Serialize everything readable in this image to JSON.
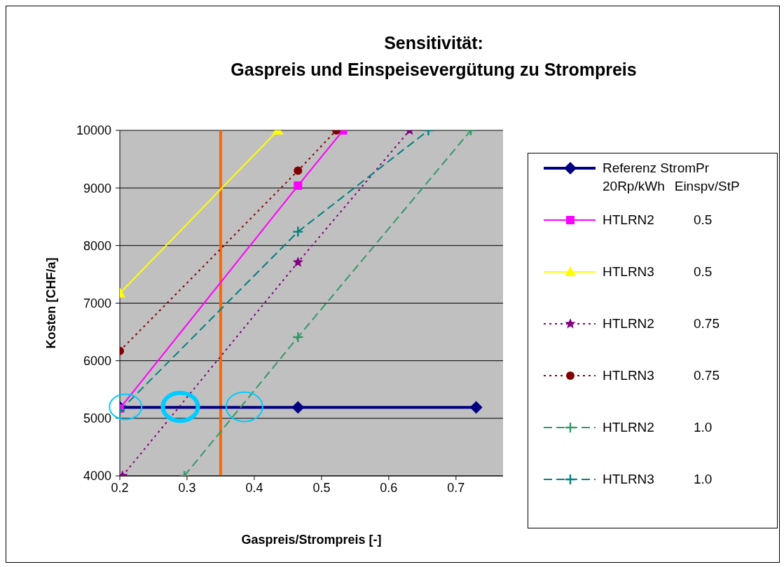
{
  "chart_data": {
    "type": "line",
    "title": "Sensitivität:\nGaspreis und Einspeisevergütung zu Strompreis",
    "xlabel": "Gaspreis/Strompreis [-]",
    "ylabel": "Kosten [CHF/a]",
    "legend_title": "Einspv/StP",
    "xlim": [
      0.2,
      0.77
    ],
    "xticks": [
      0.2,
      0.3,
      0.4,
      0.5,
      0.6,
      0.7
    ],
    "ylim": [
      4000,
      10000
    ],
    "yticks": [
      4000,
      5000,
      6000,
      7000,
      8000,
      9000,
      10000
    ],
    "grid": "y",
    "legend": "right",
    "series": [
      {
        "name": "Referenz StromPr 20Rp/kWh",
        "color": "#000080",
        "x": [
          0.2,
          0.465,
          0.73
        ],
        "values": [
          5190,
          5190,
          5190
        ],
        "marker": "diamond",
        "line_style": "solid"
      },
      {
        "name": "HTLRN2 0.5",
        "color": "#ff00ff",
        "x": [
          0.2,
          0.465,
          0.532
        ],
        "values": [
          5170,
          9040,
          10000
        ],
        "marker": "square",
        "line_style": "solid"
      },
      {
        "name": "HTLRN3 0.5",
        "color": "#ffff00",
        "x": [
          0.2,
          0.435
        ],
        "values": [
          7170,
          10000
        ],
        "marker": "triangle",
        "line_style": "solid"
      },
      {
        "name": "HTLRN2 0.75",
        "color": "#800080",
        "x": [
          0.204,
          0.465,
          0.631
        ],
        "values": [
          4000,
          7710,
          10000
        ],
        "marker": "star",
        "line_style": "dotted"
      },
      {
        "name": "HTLRN3 0.75",
        "color": "#800000",
        "x": [
          0.2,
          0.465,
          0.522
        ],
        "values": [
          6170,
          9300,
          10000
        ],
        "marker": "circle",
        "line_style": "dotted"
      },
      {
        "name": "HTLRN2 1.0",
        "color": "#339966",
        "x": [
          0.296,
          0.465,
          0.722
        ],
        "values": [
          4000,
          6410,
          10000
        ],
        "marker": "cross",
        "line_style": "dashed"
      },
      {
        "name": "HTLRN3 1.0",
        "color": "#008080",
        "x": [
          0.2,
          0.465,
          0.659
        ],
        "values": [
          5130,
          8240,
          10000
        ],
        "marker": "cross",
        "line_style": "dashed"
      }
    ],
    "ref_lines": [
      {
        "axis": "x",
        "value": 0.35,
        "label": null,
        "color": "#ff6600",
        "line_style": "solid"
      }
    ]
  }
}
